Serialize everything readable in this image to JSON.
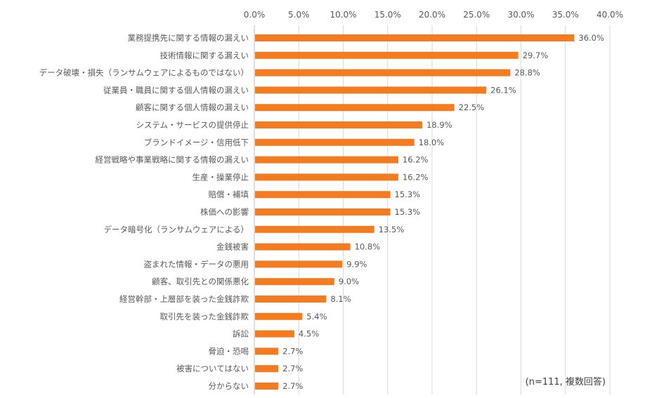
{
  "chart_data": {
    "type": "bar",
    "orientation": "horizontal",
    "categories": [
      "業務提携先に関する情報の漏えい",
      "技術情報に関する漏えい",
      "データ破壊・損失（ランサムウェアによるものではない）",
      "従業員・職員に関する個人情報の漏えい",
      "顧客に関する個人情報の漏えい",
      "システム・サービスの提供停止",
      "ブランドイメージ・信用低下",
      "経営戦略や事業戦略に関する情報の漏えい",
      "生産・操業停止",
      "賠償・補填",
      "株価への影響",
      "データ暗号化（ランサムウェアによる）",
      "金銭被害",
      "盗まれた情報・データの悪用",
      "顧客、取引先との関係悪化",
      "経営幹部・上層部を装った金銭詐欺",
      "取引先を装った金銭詐欺",
      "訴訟",
      "脅迫・恐喝",
      "被害についてはない",
      "分からない"
    ],
    "values": [
      36.0,
      29.7,
      28.8,
      26.1,
      22.5,
      18.9,
      18.0,
      16.2,
      16.2,
      15.3,
      15.3,
      13.5,
      10.8,
      9.9,
      9.0,
      8.1,
      5.4,
      4.5,
      2.7,
      2.7,
      2.7
    ],
    "data_labels": [
      "36.0%",
      "29.7%",
      "28.8%",
      "26.1%",
      "22.5%",
      "18.9%",
      "18.0%",
      "16.2%",
      "16.2%",
      "15.3%",
      "15.3%",
      "13.5%",
      "10.8%",
      "9.9%",
      "9.0%",
      "8.1%",
      "5.4%",
      "4.5%",
      "2.7%",
      "2.7%",
      "2.7%"
    ],
    "xlim": [
      0,
      40
    ],
    "xticks": [
      "0.0%",
      "5.0%",
      "10.0%",
      "15.0%",
      "20.0%",
      "25.0%",
      "30.0%",
      "35.0%",
      "40.0%"
    ],
    "xtick_values": [
      0,
      5,
      10,
      15,
      20,
      25,
      30,
      35,
      40
    ],
    "xaxis_position": "top",
    "grid": true,
    "bar_color": "#f47b20",
    "grid_color": "#d9d9d9",
    "annotation": "(n=111, 複数回答)",
    "title": "",
    "xlabel": "",
    "ylabel": ""
  }
}
